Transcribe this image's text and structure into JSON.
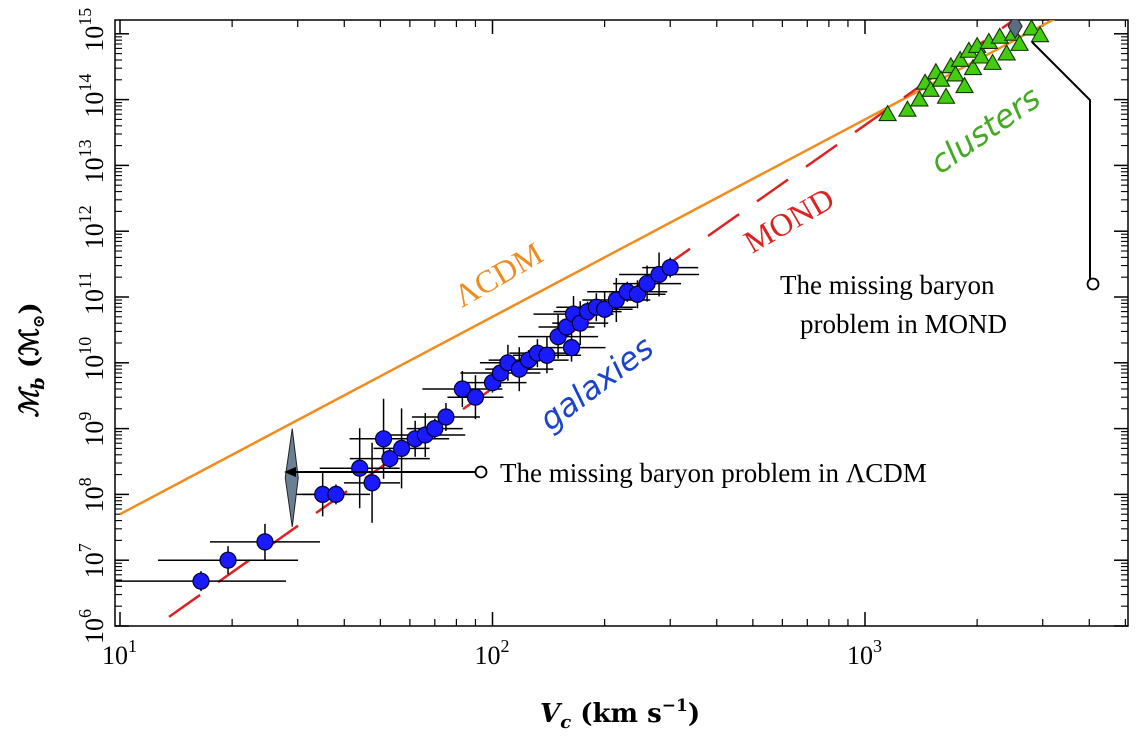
{
  "chart_data": {
    "type": "scatter",
    "xlabel": "V_c (km s^-1)",
    "xlabel_parts": {
      "symbol": "V",
      "subscript": "c",
      "units": " (km s",
      "exp": "−1",
      "close": ")"
    },
    "ylabel_parts": {
      "symbol": "ℳ",
      "subscript": "b",
      "units": " (ℳ",
      "sub2": "⊙",
      "close": ")"
    },
    "x_scale": "log",
    "y_scale": "log",
    "xlim": [
      10,
      5500
    ],
    "ylim": [
      1000000,
      1000000000000000
    ],
    "x_ticks": [
      {
        "base": "10",
        "exp": "1"
      },
      {
        "base": "10",
        "exp": "2"
      },
      {
        "base": "10",
        "exp": "3"
      }
    ],
    "y_ticks": [
      {
        "base": "10",
        "exp": "6"
      },
      {
        "base": "10",
        "exp": "7"
      },
      {
        "base": "10",
        "exp": "8"
      },
      {
        "base": "10",
        "exp": "9"
      },
      {
        "base": "10",
        "exp": "10"
      },
      {
        "base": "10",
        "exp": "11"
      },
      {
        "base": "10",
        "exp": "12"
      },
      {
        "base": "10",
        "exp": "13"
      },
      {
        "base": "10",
        "exp": "14"
      },
      {
        "base": "10",
        "exp": "15"
      }
    ],
    "grid": false,
    "series": [
      {
        "name": "galaxies",
        "marker": "circle",
        "color": "#1a1aff",
        "points": [
          [
            16.5,
            4800000.0
          ],
          [
            19.5,
            10000000.0
          ],
          [
            24.5,
            19000000.0
          ],
          [
            35.0,
            100000000.0
          ],
          [
            38.0,
            100000000.0
          ],
          [
            44.0,
            250000000.0
          ],
          [
            47.5,
            150000000.0
          ],
          [
            51.0,
            700000000.0
          ],
          [
            53.0,
            350000000.0
          ],
          [
            57.0,
            500000000.0
          ],
          [
            62.0,
            700000000.0
          ],
          [
            66.0,
            800000000.0
          ],
          [
            70.0,
            1000000000.0
          ],
          [
            75.0,
            1500000000.0
          ],
          [
            83.0,
            4000000000.0
          ],
          [
            90.0,
            3000000000.0
          ],
          [
            100.0,
            5000000000.0
          ],
          [
            105.0,
            7000000000.0
          ],
          [
            110.0,
            10000000000.0
          ],
          [
            118.0,
            8000000000.0
          ],
          [
            125.0,
            11000000000.0
          ],
          [
            132.0,
            14000000000.0
          ],
          [
            140.0,
            13000000000.0
          ],
          [
            150.0,
            25000000000.0
          ],
          [
            158.0,
            35000000000.0
          ],
          [
            163.0,
            17000000000.0
          ],
          [
            165.0,
            55000000000.0
          ],
          [
            172.0,
            40000000000.0
          ],
          [
            180.0,
            60000000000.0
          ],
          [
            190.0,
            70000000000.0
          ],
          [
            200.0,
            65000000000.0
          ],
          [
            215.0,
            90000000000.0
          ],
          [
            230.0,
            120000000000.0
          ],
          [
            245.0,
            110000000000.0
          ],
          [
            260.0,
            160000000000.0
          ],
          [
            280.0,
            220000000000.0
          ],
          [
            300.0,
            280000000000.0
          ]
        ]
      },
      {
        "name": "clusters",
        "marker": "triangle",
        "color": "#44cc11",
        "points": [
          [
            1150,
            60000000000000.0
          ],
          [
            1300,
            70000000000000.0
          ],
          [
            1400,
            100000000000000.0
          ],
          [
            1450,
            180000000000000.0
          ],
          [
            1500,
            140000000000000.0
          ],
          [
            1550,
            260000000000000.0
          ],
          [
            1600,
            200000000000000.0
          ],
          [
            1650,
            110000000000000.0
          ],
          [
            1700,
            320000000000000.0
          ],
          [
            1750,
            240000000000000.0
          ],
          [
            1800,
            400000000000000.0
          ],
          [
            1850,
            160000000000000.0
          ],
          [
            1900,
            550000000000000.0
          ],
          [
            1950,
            300000000000000.0
          ],
          [
            2000,
            650000000000000.0
          ],
          [
            2050,
            450000000000000.0
          ],
          [
            2150,
            750000000000000.0
          ],
          [
            2200,
            360000000000000.0
          ],
          [
            2300,
            900000000000000.0
          ],
          [
            2400,
            500000000000000.0
          ],
          [
            2500,
            1000000000000000.0
          ],
          [
            2600,
            700000000000000.0
          ],
          [
            2800,
            1200000000000000.0
          ],
          [
            2950,
            950000000000000.0
          ]
        ]
      }
    ],
    "lines": [
      {
        "name": "ΛCDM",
        "style": "solid",
        "color": "#f08c1e",
        "slope": 3,
        "x0": 10,
        "y0": 50000000.0
      },
      {
        "name": "MOND",
        "style": "dashed",
        "color": "#dd2222",
        "slope": 4,
        "x0": 12.5,
        "y0": 1000000.0
      }
    ],
    "annotations": [
      {
        "text": "The missing baryon problem in ΛCDM"
      },
      {
        "text_line1": "The missing baryon",
        "text_line2": "problem in MOND"
      }
    ],
    "diamond_markers": [
      {
        "x": 29,
        "y_low": 32000000.0,
        "y_high": 1000000000.0,
        "color": "#667788"
      },
      {
        "x": 2530,
        "y": 1300000000000000.0,
        "color": "#556677"
      }
    ]
  }
}
